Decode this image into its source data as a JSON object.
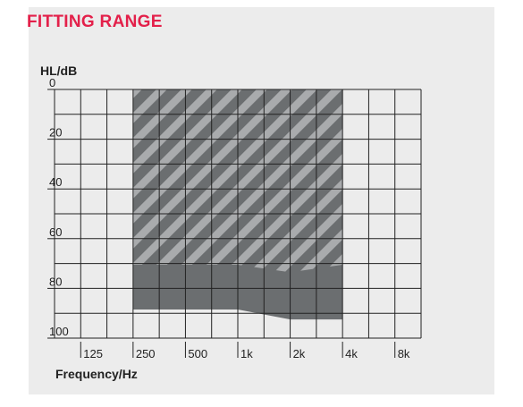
{
  "chart_data": {
    "type": "area",
    "title": "FITTING RANGE",
    "ylabel": "HL/dB",
    "xlabel": "Frequency/Hz",
    "y_ticks": [
      "0",
      "20",
      "40",
      "60",
      "80",
      "100"
    ],
    "x_ticks": [
      "125",
      "250",
      "500",
      "1k",
      "2k",
      "4k",
      "8k"
    ],
    "ylim": [
      0,
      100
    ],
    "y_axis_inverted": true,
    "x_scale": "log2",
    "grid": true,
    "x_span": [
      "250",
      "4k"
    ],
    "series": [
      {
        "hatch": true,
        "lower_boundary": [
          {
            "x": "250",
            "y": 70.5
          },
          {
            "x": "500",
            "y": 70.5
          },
          {
            "x": "1k",
            "y": 70.5
          },
          {
            "x": "2k",
            "y": 73.5
          },
          {
            "x": "4k",
            "y": 70.5
          }
        ]
      },
      {
        "lower_boundary": [
          {
            "x": "250",
            "y": 88.5
          },
          {
            "x": "1k",
            "y": 88.5
          },
          {
            "x": "2k",
            "y": 92.5
          },
          {
            "x": "4k",
            "y": 92.5
          }
        ]
      }
    ],
    "colors": {
      "title": "#e3204a",
      "panel_bg": "#ececec",
      "grid_line": "#222222",
      "solid_fill": "#6b6e70",
      "hatch_light": "#a9abad"
    }
  }
}
